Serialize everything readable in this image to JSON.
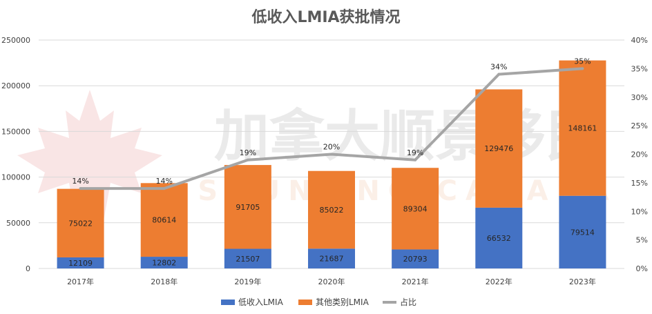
{
  "chart_data": {
    "type": "bar",
    "stacked": true,
    "title": "低收入LMIA获批情况",
    "categories": [
      "2017年",
      "2018年",
      "2019年",
      "2020年",
      "2021年",
      "2022年",
      "2023年"
    ],
    "series": [
      {
        "name": "低收入LMIA",
        "type": "bar",
        "axis": "left",
        "color": "#4472c4",
        "values": [
          12109,
          12802,
          21507,
          21687,
          20793,
          66532,
          79514
        ]
      },
      {
        "name": "其他类别LMIA",
        "type": "bar",
        "axis": "left",
        "color": "#ed7d31",
        "values": [
          75022,
          80614,
          91705,
          85022,
          89304,
          129476,
          148161
        ]
      },
      {
        "name": "占比",
        "type": "line",
        "axis": "right",
        "color": "#a5a5a5",
        "values": [
          14,
          14,
          19,
          20,
          19,
          34,
          35
        ],
        "labels": [
          "14%",
          "14%",
          "19%",
          "20%",
          "19%",
          "34%",
          "35%"
        ]
      }
    ],
    "y_left": {
      "min": 0,
      "max": 250000,
      "ticks": [
        "0",
        "50000",
        "100000",
        "150000",
        "200000",
        "250000"
      ]
    },
    "y_right": {
      "min": 0,
      "max": 40,
      "ticks": [
        "0%",
        "5%",
        "10%",
        "15%",
        "20%",
        "25%",
        "30%",
        "35%",
        "40%"
      ]
    },
    "grid": true,
    "legend_position": "bottom"
  },
  "watermark": {
    "text": "加拿大顺景移民",
    "subtext": "SHUNJING CANADA",
    "mark": "maple-leaf-icon"
  }
}
